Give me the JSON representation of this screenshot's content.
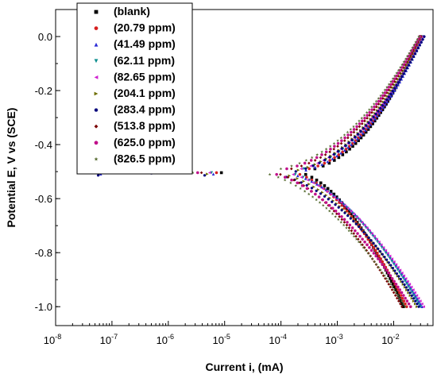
{
  "chart_data": {
    "type": "scatter",
    "title": "",
    "xlabel": "Current i, (mA)",
    "ylabel": "Potential E, V vs (SCE)",
    "xscale": "log",
    "xlim": [
      1e-08,
      0.05
    ],
    "ylim": [
      -1.07,
      0.1
    ],
    "x_ticks": [
      {
        "value": 1e-08,
        "base": "10",
        "exp": "-8"
      },
      {
        "value": 1e-07,
        "base": "10",
        "exp": "-7"
      },
      {
        "value": 1e-06,
        "base": "10",
        "exp": "-6"
      },
      {
        "value": 1e-05,
        "base": "10",
        "exp": "-5"
      },
      {
        "value": 0.0001,
        "base": "10",
        "exp": "-4"
      },
      {
        "value": 0.001,
        "base": "10",
        "exp": "-3"
      },
      {
        "value": 0.01,
        "base": "10",
        "exp": "-2"
      }
    ],
    "y_ticks": [
      {
        "value": 0.0,
        "label": "0.0"
      },
      {
        "value": -0.2,
        "label": "-0.2"
      },
      {
        "value": -0.4,
        "label": "-0.4"
      },
      {
        "value": -0.6,
        "label": "-0.6"
      },
      {
        "value": -0.8,
        "label": "-0.8"
      },
      {
        "value": -1.0,
        "label": "-1.0"
      }
    ],
    "legend_position": "top-left",
    "grid": false,
    "series": [
      {
        "name": "(blank)",
        "color": "#000000",
        "marker": "square",
        "ecorr": -0.5,
        "icorr": 0.00016,
        "anodic_end_i": 0.03,
        "cathodic_end_i": 0.015
      },
      {
        "name": "(20.79 ppm)",
        "color": "#d62020",
        "marker": "circle",
        "ecorr": -0.5,
        "icorr": 0.00012,
        "anodic_end_i": 0.031,
        "cathodic_end_i": 0.017
      },
      {
        "name": "(41.49 ppm)",
        "color": "#2b2bd6",
        "marker": "triangle-up",
        "ecorr": -0.505,
        "icorr": 0.0001,
        "anodic_end_i": 0.034,
        "cathodic_end_i": 0.032
      },
      {
        "name": "(62.11 ppm)",
        "color": "#0f8f8f",
        "marker": "triangle-down",
        "ecorr": -0.5,
        "icorr": 9e-05,
        "anodic_end_i": 0.033,
        "cathodic_end_i": 0.03
      },
      {
        "name": "(82.65 ppm)",
        "color": "#d020d0",
        "marker": "triangle-left",
        "ecorr": -0.5,
        "icorr": 8e-05,
        "anodic_end_i": 0.032,
        "cathodic_end_i": 0.034
      },
      {
        "name": "(204.1 ppm)",
        "color": "#6f6f00",
        "marker": "triangle-right",
        "ecorr": -0.505,
        "icorr": 7e-05,
        "anodic_end_i": 0.031,
        "cathodic_end_i": 0.026
      },
      {
        "name": "(283.4 ppm)",
        "color": "#00007a",
        "marker": "hexagon",
        "ecorr": -0.51,
        "icorr": 6e-05,
        "anodic_end_i": 0.035,
        "cathodic_end_i": 0.028
      },
      {
        "name": "(513.8 ppm)",
        "color": "#7a0000",
        "marker": "diamond",
        "ecorr": -0.5,
        "icorr": 5e-05,
        "anodic_end_i": 0.03,
        "cathodic_end_i": 0.014
      },
      {
        "name": "(625.0 ppm)",
        "color": "#c0108a",
        "marker": "circle",
        "ecorr": -0.5,
        "icorr": 4e-05,
        "anodic_end_i": 0.029,
        "cathodic_end_i": 0.02
      },
      {
        "name": "(826.5 ppm)",
        "color": "#556b2f",
        "marker": "star",
        "ecorr": -0.5,
        "icorr": 3e-05,
        "anodic_end_i": 0.028,
        "cathodic_end_i": 0.016
      }
    ]
  }
}
